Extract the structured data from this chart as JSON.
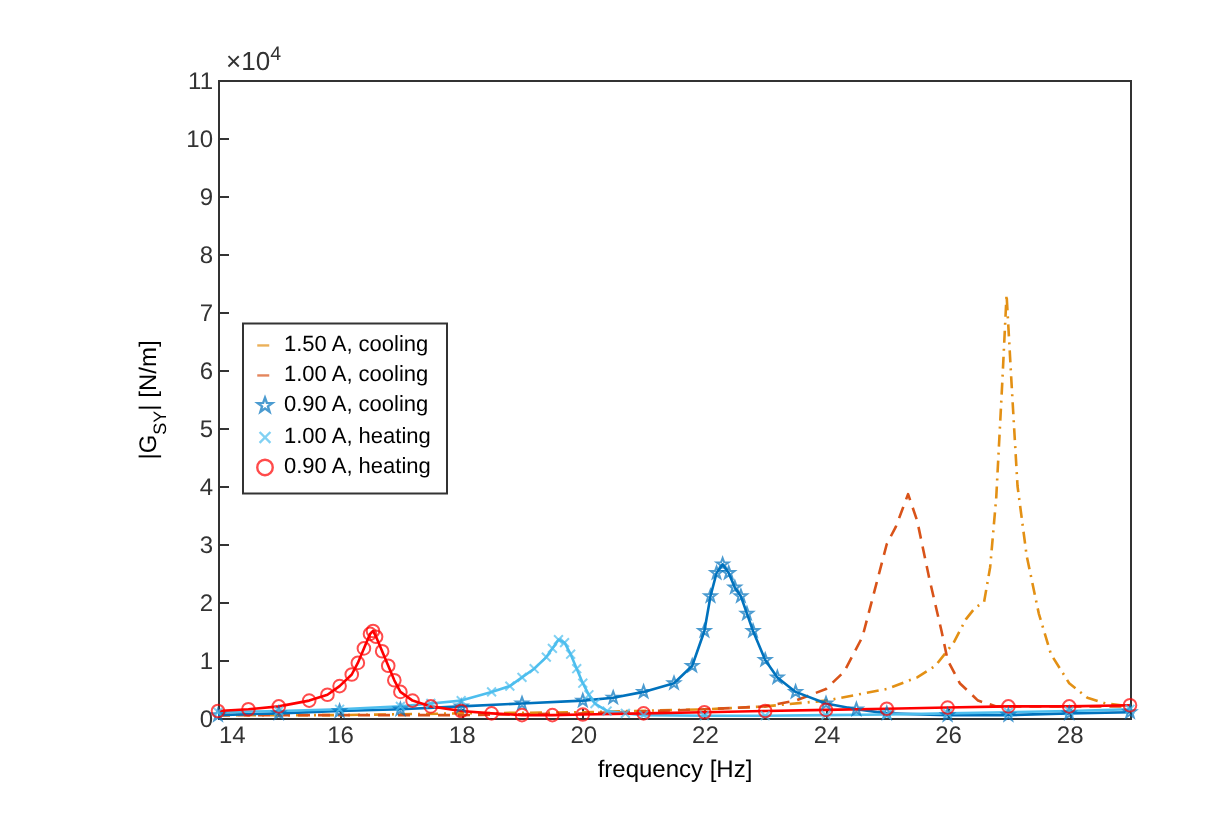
{
  "chart_data": {
    "type": "line",
    "xlabel": "frequency   [Hz]",
    "ylabel": "|G$_{SY}$|   [N/m]",
    "annotations": [
      "×10$^{4}$"
    ],
    "xlim": [
      14,
      29
    ],
    "xticks": [
      14,
      16,
      18,
      20,
      22,
      24,
      26,
      28
    ],
    "ylim": [
      0,
      11
    ],
    "yticks": [
      0,
      1,
      2,
      3,
      4,
      5,
      6,
      7,
      8,
      9,
      10,
      11
    ],
    "grid": false,
    "legend": "left",
    "series": [
      {
        "name": "1.50 A, cooling",
        "color": "#e39014",
        "line_style": "dashdot",
        "marker": "none",
        "x": [
          14,
          16,
          18,
          20,
          22,
          23,
          24,
          24.5,
          25,
          25.5,
          25.8,
          26.1,
          26.3,
          26.45,
          26.6,
          26.7,
          26.8,
          26.9,
          26.97,
          27.05,
          27.15,
          27.3,
          27.5,
          27.7,
          28,
          28.3,
          28.6,
          29
        ],
        "values": [
          0.05,
          0.05,
          0.08,
          0.1,
          0.15,
          0.2,
          0.3,
          0.4,
          0.5,
          0.7,
          0.9,
          1.3,
          1.7,
          1.9,
          2.0,
          2.6,
          3.8,
          5.8,
          7.3,
          5.8,
          4.0,
          2.8,
          1.8,
          1.1,
          0.6,
          0.35,
          0.25,
          0.2
        ]
      },
      {
        "name": "1.00 A, cooling",
        "color": "#d95319",
        "line_style": "dashed",
        "marker": "none",
        "x": [
          14,
          16,
          18,
          20,
          22,
          23,
          23.5,
          24,
          24.3,
          24.6,
          24.8,
          25,
          25.15,
          25.35,
          25.5,
          25.7,
          25.9,
          26,
          26.2,
          26.5,
          26.8,
          27,
          28,
          29
        ],
        "values": [
          0.05,
          0.05,
          0.05,
          0.08,
          0.15,
          0.2,
          0.3,
          0.5,
          0.8,
          1.4,
          2.2,
          3.0,
          3.3,
          3.86,
          3.4,
          2.4,
          1.5,
          1.0,
          0.6,
          0.3,
          0.2,
          0.2,
          0.2,
          0.2
        ]
      },
      {
        "name": "0.90 A, cooling",
        "color": "#0072bd",
        "line_style": "solid",
        "marker": "star",
        "x": [
          14,
          15,
          16,
          17,
          18,
          19,
          20,
          20.5,
          21,
          21.5,
          21.8,
          22,
          22.1,
          22.2,
          22.3,
          22.4,
          22.5,
          22.6,
          22.7,
          22.8,
          23,
          23.2,
          23.5,
          24,
          24.5,
          25,
          26,
          27,
          28,
          29
        ],
        "values": [
          0.05,
          0.08,
          0.12,
          0.15,
          0.2,
          0.25,
          0.3,
          0.35,
          0.45,
          0.6,
          0.9,
          1.5,
          2.1,
          2.5,
          2.65,
          2.5,
          2.25,
          2.1,
          1.8,
          1.5,
          1.0,
          0.7,
          0.45,
          0.25,
          0.15,
          0.08,
          0.05,
          0.05,
          0.08,
          0.1
        ]
      },
      {
        "name": "1.00 A, heating",
        "color": "#4dbeee",
        "line_style": "solid",
        "marker": "cross",
        "x": [
          14,
          15,
          16,
          17,
          17.5,
          18,
          18.5,
          18.8,
          19,
          19.2,
          19.4,
          19.5,
          19.6,
          19.7,
          19.8,
          19.9,
          20,
          20.1,
          20.2,
          20.4,
          20.7,
          21,
          22,
          23,
          24,
          25,
          26,
          27,
          28,
          29
        ],
        "values": [
          0.1,
          0.12,
          0.15,
          0.2,
          0.25,
          0.3,
          0.45,
          0.55,
          0.7,
          0.85,
          1.05,
          1.2,
          1.35,
          1.3,
          1.1,
          0.85,
          0.6,
          0.4,
          0.25,
          0.12,
          0.08,
          0.05,
          0.04,
          0.04,
          0.05,
          0.06,
          0.08,
          0.1,
          0.12,
          0.15
        ]
      },
      {
        "name": "0.90 A, heating",
        "color": "#ff0000",
        "line_style": "solid",
        "marker": "circle",
        "x": [
          14,
          14.5,
          15,
          15.5,
          15.8,
          16,
          16.2,
          16.3,
          16.4,
          16.5,
          16.55,
          16.6,
          16.7,
          16.8,
          16.9,
          17,
          17.2,
          17.5,
          18,
          18.5,
          19,
          19.5,
          20,
          21,
          22,
          23,
          24,
          25,
          26,
          27,
          28,
          29
        ],
        "values": [
          0.12,
          0.15,
          0.2,
          0.3,
          0.4,
          0.55,
          0.75,
          0.95,
          1.2,
          1.45,
          1.5,
          1.4,
          1.15,
          0.9,
          0.65,
          0.45,
          0.3,
          0.2,
          0.12,
          0.08,
          0.05,
          0.05,
          0.06,
          0.08,
          0.1,
          0.12,
          0.14,
          0.16,
          0.18,
          0.2,
          0.2,
          0.22
        ]
      }
    ]
  }
}
